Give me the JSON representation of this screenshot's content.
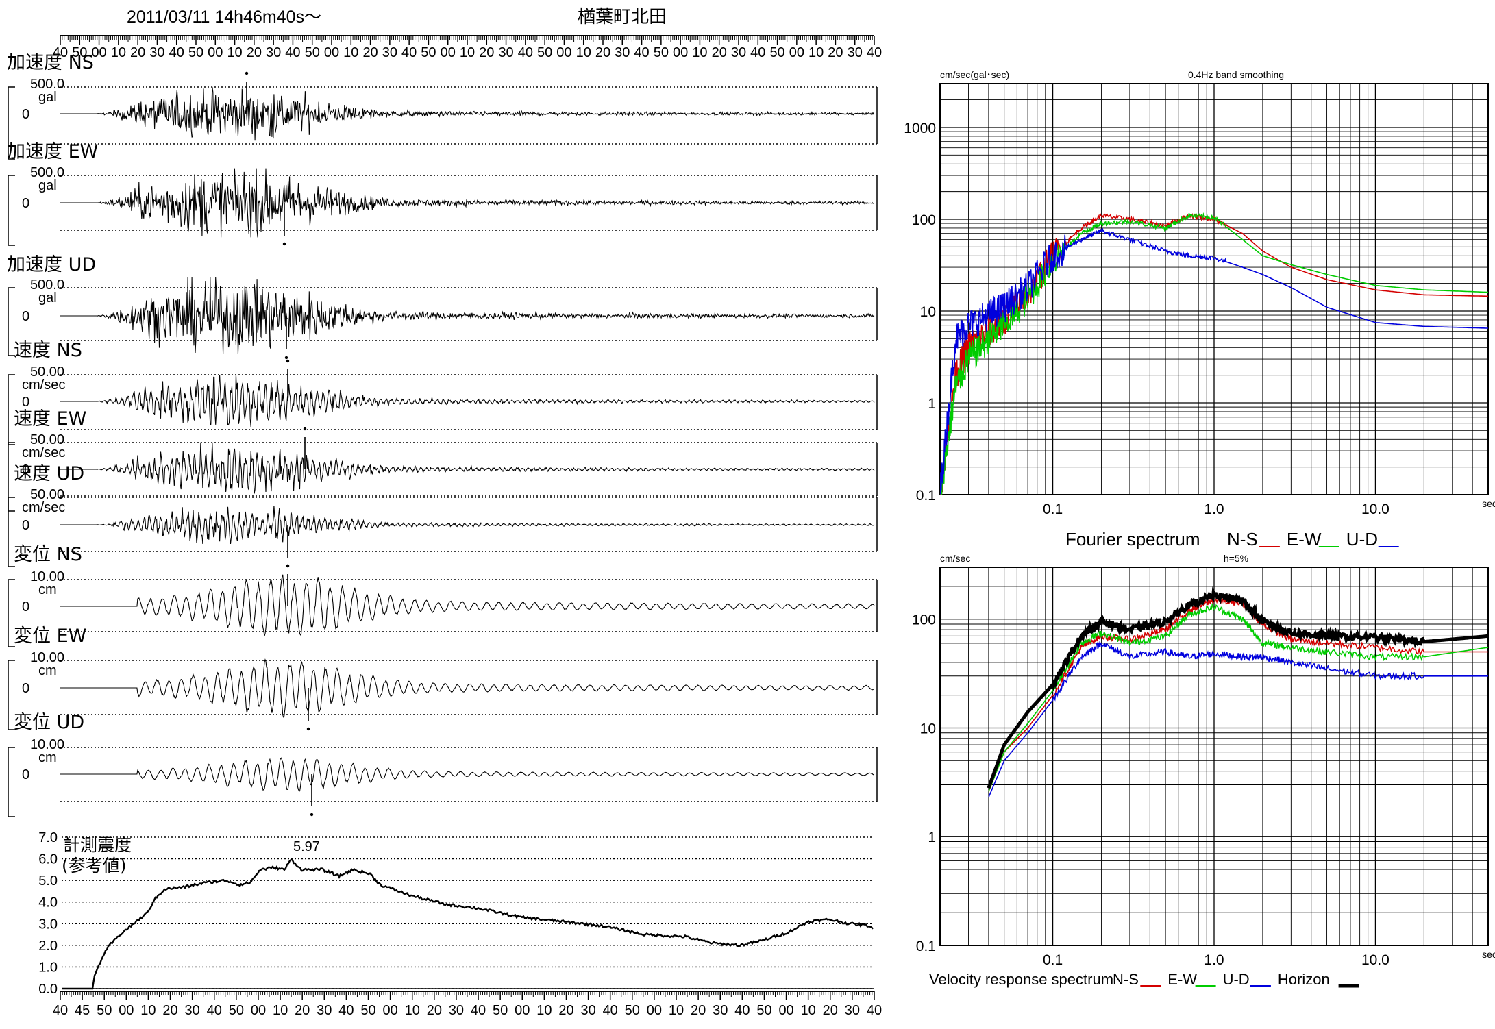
{
  "header": {
    "datetime": "2011/03/11  14h46m40s〜",
    "station": "楢葉町北田",
    "time_ticks": [
      "40",
      "50",
      "00",
      "10",
      "20",
      "30",
      "40",
      "50",
      "00",
      "10",
      "20",
      "30",
      "40",
      "50",
      "00",
      "10",
      "20",
      "30",
      "40",
      "50",
      "00",
      "10",
      "20",
      "30",
      "40",
      "50",
      "00",
      "10",
      "20",
      "30",
      "40",
      "50",
      "00",
      "10",
      "20",
      "30",
      "40",
      "50",
      "00",
      "10",
      "20",
      "30",
      "40"
    ]
  },
  "waveforms": [
    {
      "label": "加速度 NS",
      "scale": "500.0",
      "unit": "gal",
      "zero": "0"
    },
    {
      "label": "加速度 EW",
      "scale": "500.0",
      "unit": "gal",
      "zero": "0"
    },
    {
      "label": "加速度 UD",
      "scale": "500.0",
      "unit": "gal",
      "zero": "0"
    },
    {
      "label": "速度 NS",
      "scale": "50.00",
      "unit": "cm/sec",
      "zero": "0"
    },
    {
      "label": "速度 EW",
      "scale": "50.00",
      "unit": "cm/sec",
      "zero": "0"
    },
    {
      "label": "速度 UD",
      "scale": "50.00",
      "unit": "cm/sec",
      "zero": "0"
    },
    {
      "label": "変位 NS",
      "scale": "10.00",
      "unit": "cm",
      "zero": "0"
    },
    {
      "label": "変位 EW",
      "scale": "10.00",
      "unit": "cm",
      "zero": "0"
    },
    {
      "label": "変位 UD",
      "scale": "10.00",
      "unit": "cm",
      "zero": "0"
    }
  ],
  "intensity": {
    "label1": "計測震度",
    "label2": "(参考値)",
    "peak_label": "5.97",
    "y_ticks": [
      "7.0",
      "6.0",
      "5.0",
      "4.0",
      "3.0",
      "2.0",
      "1.0",
      "0.0"
    ],
    "bottom_ticks": [
      "40",
      "45",
      "50",
      "00",
      "10",
      "20",
      "30",
      "40",
      "50",
      "00",
      "10",
      "20",
      "30",
      "40",
      "50",
      "00",
      "10",
      "20",
      "30",
      "40",
      "50",
      "00",
      "10",
      "20",
      "30",
      "40",
      "50",
      "00",
      "10",
      "20",
      "30",
      "40",
      "50",
      "00",
      "10",
      "20",
      "30",
      "40"
    ]
  },
  "chart_data": [
    {
      "type": "line",
      "title": "0.4Hz band smoothing",
      "ylabel": "cm/sec(gal･sec)",
      "xlabel": "sec",
      "x_scale": "log",
      "y_scale": "log",
      "xlim": [
        0.02,
        50
      ],
      "ylim": [
        0.1,
        3000
      ],
      "x_tick_labels": [
        "0.1",
        "1.0",
        "10.0",
        "sec"
      ],
      "y_tick_labels": [
        "1000",
        "100",
        "10",
        "1",
        "0.1"
      ],
      "legend": {
        "text": "Fourier spectrum",
        "items": [
          "N-S",
          "E-W",
          "U-D"
        ]
      },
      "series": [
        {
          "name": "N-S",
          "color": "#d40000",
          "x": [
            0.02,
            0.025,
            0.03,
            0.04,
            0.05,
            0.07,
            0.1,
            0.15,
            0.2,
            0.3,
            0.5,
            0.7,
            1.0,
            1.5,
            2,
            3,
            5,
            10,
            20,
            50
          ],
          "y": [
            0.1,
            2,
            4,
            6,
            8,
            15,
            40,
            80,
            110,
            100,
            85,
            110,
            100,
            70,
            45,
            30,
            22,
            17,
            15,
            14.5
          ]
        },
        {
          "name": "E-W",
          "color": "#00cc00",
          "x": [
            0.02,
            0.025,
            0.03,
            0.04,
            0.05,
            0.07,
            0.1,
            0.15,
            0.2,
            0.3,
            0.5,
            0.7,
            1.0,
            1.5,
            2,
            3,
            5,
            10,
            20,
            50
          ],
          "y": [
            0.1,
            1.5,
            3,
            5,
            7,
            14,
            35,
            70,
            90,
            95,
            80,
            110,
            105,
            60,
            40,
            32,
            25,
            19,
            17,
            16
          ]
        },
        {
          "name": "U-D",
          "color": "#0000dd",
          "x": [
            0.02,
            0.025,
            0.03,
            0.04,
            0.05,
            0.07,
            0.1,
            0.15,
            0.2,
            0.3,
            0.5,
            0.7,
            1.0,
            1.5,
            2,
            3,
            5,
            10,
            20,
            50
          ],
          "y": [
            0.1,
            5,
            7,
            9,
            11,
            18,
            40,
            60,
            75,
            60,
            45,
            40,
            38,
            30,
            25,
            18,
            11,
            7.5,
            6.8,
            6.5
          ]
        }
      ]
    },
    {
      "type": "line",
      "title": "h=5%",
      "ylabel": "cm/sec",
      "xlabel": "sec",
      "x_scale": "log",
      "y_scale": "log",
      "xlim": [
        0.02,
        50
      ],
      "ylim": [
        0.1,
        300
      ],
      "x_tick_labels": [
        "0.1",
        "1.0",
        "10.0",
        "sec"
      ],
      "y_tick_labels": [
        "100",
        "10",
        "1",
        "0.1"
      ],
      "legend": {
        "text": "Velocity response spectrum",
        "items": [
          "N-S",
          "E-W",
          "U-D",
          "Horizon"
        ]
      },
      "series": [
        {
          "name": "N-S",
          "color": "#d40000",
          "x": [
            0.04,
            0.05,
            0.07,
            0.1,
            0.15,
            0.2,
            0.3,
            0.5,
            0.7,
            1.0,
            1.5,
            2,
            3,
            5,
            10,
            20,
            50
          ],
          "y": [
            2.6,
            6,
            10,
            20,
            55,
            70,
            65,
            80,
            120,
            150,
            140,
            90,
            65,
            60,
            55,
            50,
            50
          ]
        },
        {
          "name": "E-W",
          "color": "#00cc00",
          "x": [
            0.04,
            0.05,
            0.07,
            0.1,
            0.15,
            0.2,
            0.3,
            0.5,
            0.7,
            1.0,
            1.5,
            2,
            3,
            5,
            10,
            20,
            50
          ],
          "y": [
            2.6,
            6,
            11,
            22,
            60,
            75,
            60,
            70,
            110,
            130,
            100,
            60,
            55,
            50,
            45,
            45,
            55
          ]
        },
        {
          "name": "U-D",
          "color": "#0000dd",
          "x": [
            0.04,
            0.05,
            0.07,
            0.1,
            0.15,
            0.2,
            0.3,
            0.5,
            0.7,
            1.0,
            1.5,
            2,
            3,
            5,
            10,
            20,
            50
          ],
          "y": [
            2.3,
            5,
            9,
            18,
            45,
            60,
            45,
            50,
            45,
            48,
            45,
            45,
            40,
            35,
            30,
            30,
            30
          ]
        },
        {
          "name": "Horizon",
          "color": "#000000",
          "x": [
            0.04,
            0.05,
            0.07,
            0.1,
            0.15,
            0.2,
            0.3,
            0.5,
            0.7,
            1.0,
            1.5,
            2,
            3,
            5,
            10,
            20,
            50
          ],
          "y": [
            2.8,
            7,
            14,
            25,
            70,
            95,
            80,
            95,
            135,
            165,
            150,
            95,
            75,
            70,
            68,
            62,
            70
          ]
        }
      ]
    }
  ]
}
